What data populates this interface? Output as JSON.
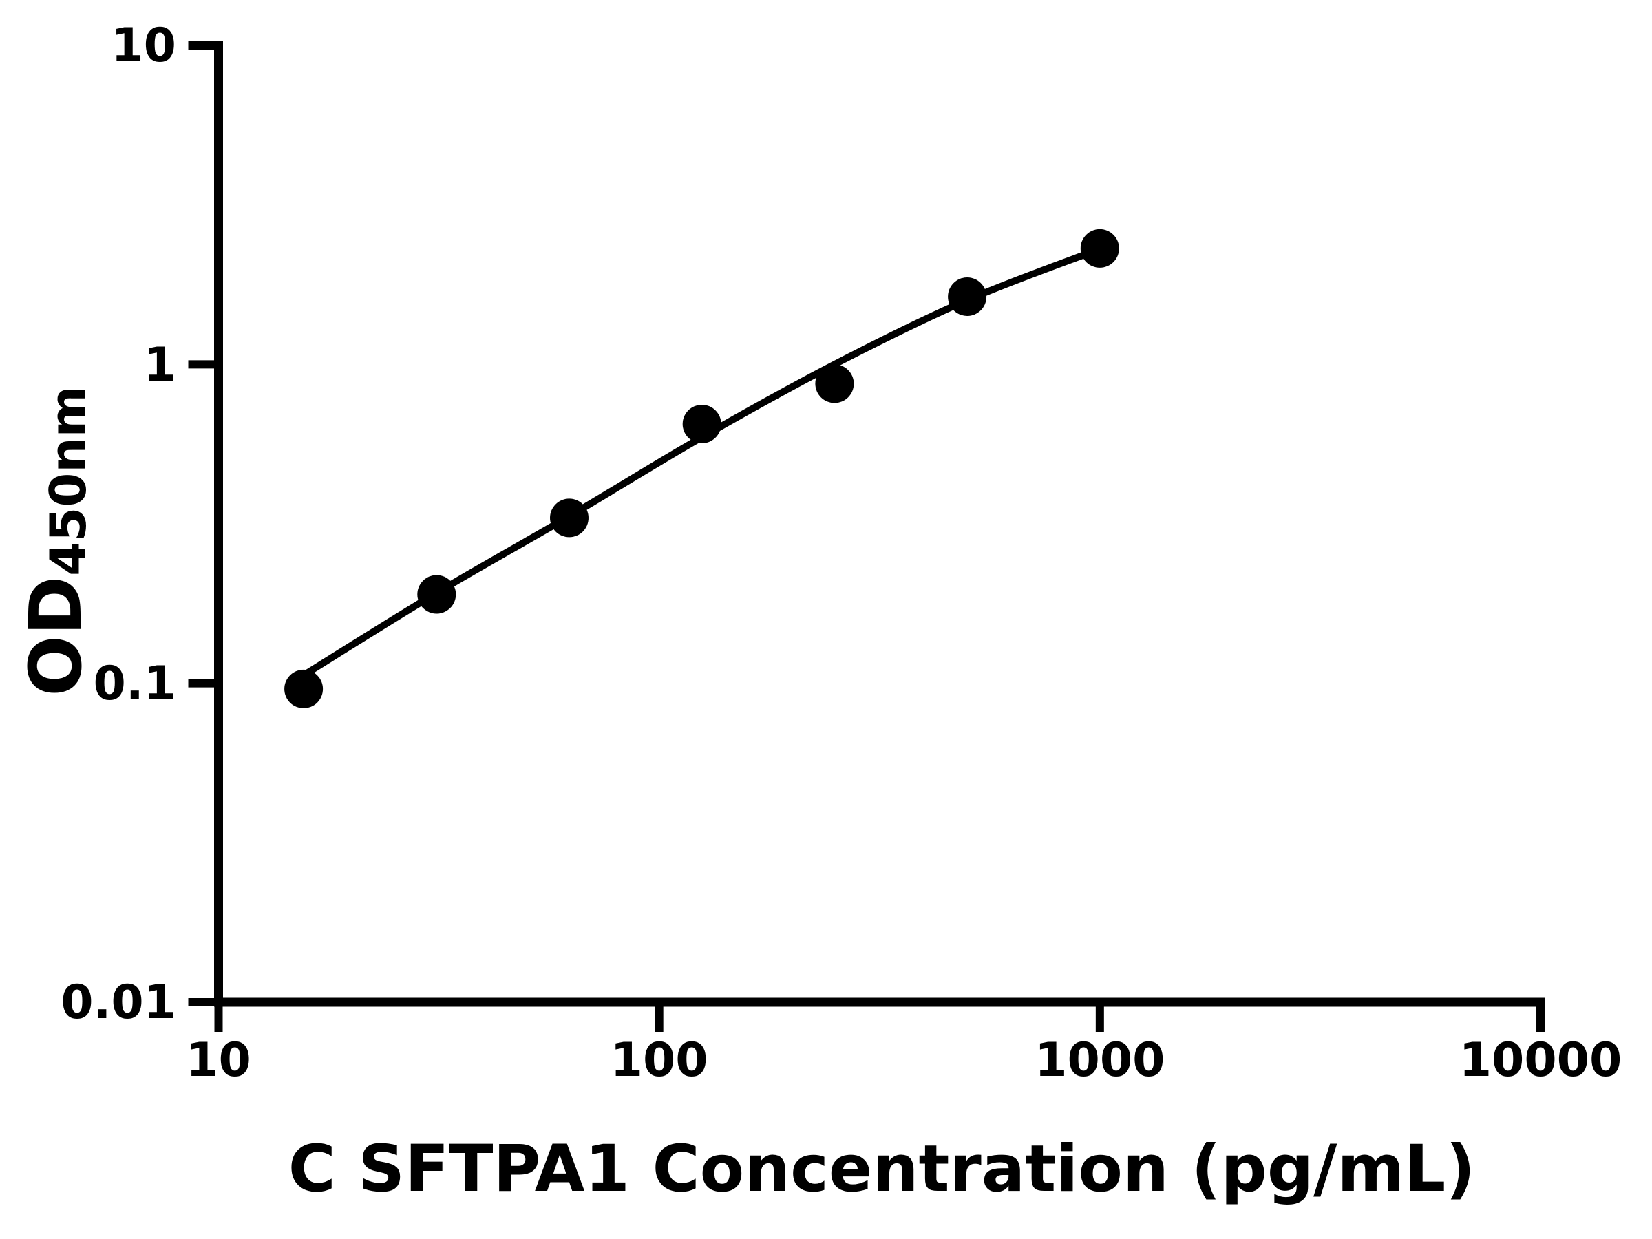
{
  "chart_data": {
    "type": "scatter",
    "title": "",
    "xlabel": "C SFTPA1 Concentration (pg/mL)",
    "ylabel_main": "OD",
    "ylabel_sub": "450nm",
    "x": [
      15.6,
      31.25,
      62.5,
      125,
      250,
      500,
      1000
    ],
    "y": [
      0.096,
      0.19,
      0.33,
      0.65,
      0.87,
      1.63,
      2.31
    ],
    "fit_curve": {
      "x": [
        15.6,
        31.25,
        62.5,
        125,
        250,
        500,
        1000
      ],
      "y": [
        0.106,
        0.192,
        0.334,
        0.591,
        1.0,
        1.59,
        2.3
      ]
    },
    "x_scale": "log",
    "y_scale": "log",
    "xlim": [
      10,
      10000
    ],
    "ylim": [
      0.01,
      10
    ],
    "x_ticks": {
      "values": [
        10,
        100,
        1000,
        10000
      ],
      "labels": [
        "10",
        "100",
        "1000",
        "10000"
      ]
    },
    "y_ticks": {
      "values": [
        10,
        1,
        0.1,
        0.01
      ],
      "labels": [
        "10",
        "1",
        "0.1",
        "0.01"
      ]
    },
    "grid": false,
    "legend": null,
    "marker_shape": "circle",
    "marker_color": "#000000",
    "line_color": "#000000",
    "axis_color": "#000000",
    "background_color": "#ffffff"
  }
}
